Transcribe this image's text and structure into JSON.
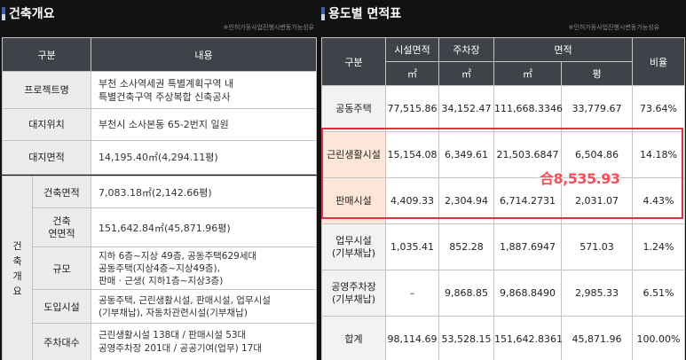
{
  "left": {
    "title": "건축개요",
    "note": "※인허가등사업진행시변동가능성유",
    "headers": {
      "col1": "구분",
      "col2": "내용"
    },
    "rows": {
      "project_label": "프로젝트명",
      "project_value_1": "부천 소사역세권 특별계획구역 내",
      "project_value_2": "특별건축구역 주상복합 신축공사",
      "site_label": "대지위치",
      "site_value": "부천시 소사본동 65-2번지 일원",
      "area_label": "대지면적",
      "area_value": "14,195.40㎡(4,294.11평)"
    },
    "group": {
      "vertical_1": "건",
      "vertical_2": "축",
      "vertical_3": "개",
      "vertical_4": "요",
      "building_area_label": "건축면적",
      "building_area_value": "7,083.18㎡(2,142.66평)",
      "floor_area_label_1": "건축",
      "floor_area_label_2": "연면적",
      "floor_area_value": "151,642.84㎡(45,871.96평)",
      "scale_label": "규모",
      "scale_value_1": "지하 6층~지상 49층, 공동주택629세대",
      "scale_value_2": "공동주택(지상4층~지상49층),",
      "scale_value_3": "판매 · 근생( 지하1층~지상3층)",
      "use_label": "도입시설",
      "use_value_1": "공동주택, 근린생활시설, 판매시설, 업무시설",
      "use_value_2": "(기부채납), 자동차관련시설(기부채납)",
      "parking_label": "주차대수",
      "parking_value_1": "근린생활시설 138대 / 판매시설 53대",
      "parking_value_2": "공영주차장 201대 / 공공기여(업무) 17대"
    }
  },
  "right": {
    "title": "용도별 면적표",
    "note": "※인허가등사업진행시변동가능성유",
    "headers": {
      "category": "구분",
      "facility_area": "시설면적",
      "parking": "주차장",
      "area": "면적",
      "ratio": "비율",
      "unit_m2": "㎡",
      "unit_pyeong": "평"
    },
    "rows": [
      {
        "use_1": "공동주택",
        "use_2": "",
        "facility": "77,515.86",
        "parking": "34,152.47",
        "m2": "111,668.3346",
        "pyeong": "33,779.67",
        "ratio": "73.64%"
      },
      {
        "use_1": "근린생활시설",
        "use_2": "",
        "facility": "15,154.08",
        "parking": "6,349.61",
        "m2": "21,503.6847",
        "pyeong": "6,504.86",
        "ratio": "14.18%"
      },
      {
        "use_1": "판매시설",
        "use_2": "",
        "facility": "4,409.33",
        "parking": "2,304.94",
        "m2": "6,714.2731",
        "pyeong": "2,031.07",
        "ratio": "4.43%"
      },
      {
        "use_1": "업무시설",
        "use_2": "(기부채납)",
        "facility": "1,035.41",
        "parking": "852.28",
        "m2": "1,887.6947",
        "pyeong": "571.03",
        "ratio": "1.24%"
      },
      {
        "use_1": "공영주차장",
        "use_2": "(기부채납)",
        "facility": "–",
        "parking": "9,868.85",
        "m2": "9,868.8490",
        "pyeong": "2,985.33",
        "ratio": "6.51%"
      },
      {
        "use_1": "합계",
        "use_2": "",
        "facility": "98,114.69",
        "parking": "53,528.15",
        "m2": "151,642.8361",
        "pyeong": "45,871.96",
        "ratio": "100.00%"
      }
    ],
    "highlight_sum": "合8,535.93"
  },
  "colors": {
    "header_bg": "#3f4248",
    "label_bg": "#ececec",
    "highlight_fill": "#fde6d8",
    "highlight_border": "#e0303a",
    "sum_text": "#ff4b55",
    "title_accent": "#3a5fb0"
  }
}
